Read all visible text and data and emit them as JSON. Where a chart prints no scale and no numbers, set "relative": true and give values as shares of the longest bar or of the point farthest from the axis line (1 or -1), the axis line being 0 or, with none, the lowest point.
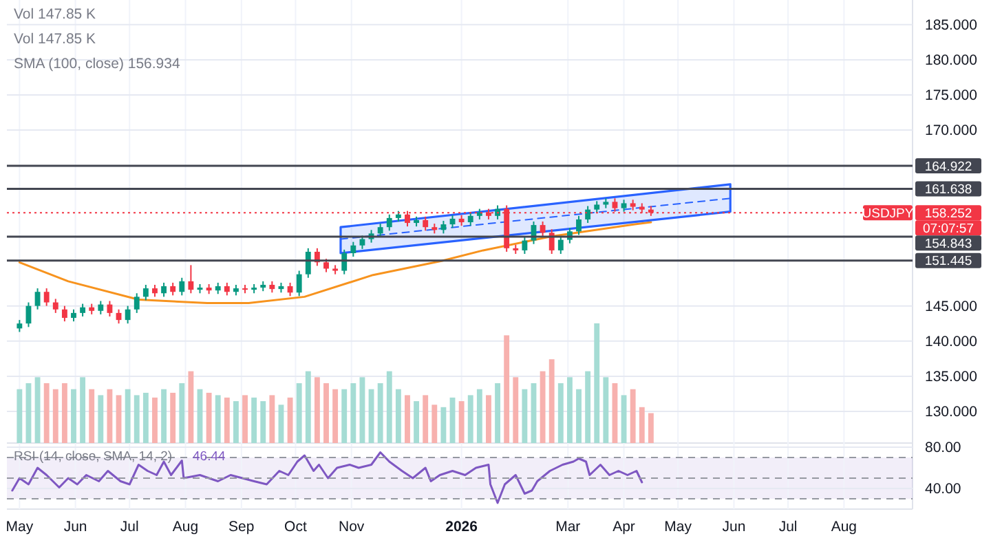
{
  "chart_data": [
    {
      "type": "candlestick",
      "xlim": [
        "2025-04-24",
        "2026-09-08"
      ],
      "ylim": [
        125.5,
        188.5
      ],
      "yticks": [
        {
          "value": 130,
          "label": "130.000"
        },
        {
          "value": 135,
          "label": "135.000"
        },
        {
          "value": 140,
          "label": "140.000"
        },
        {
          "value": 145,
          "label": "145.000"
        },
        {
          "value": 170,
          "label": "170.000"
        },
        {
          "value": 175,
          "label": "175.000"
        },
        {
          "value": 180,
          "label": "180.000"
        },
        {
          "value": 185,
          "label": "185.000"
        }
      ],
      "xticks": [
        {
          "value": "2025-05-01",
          "label": null
        },
        {
          "value": "2025-06-01",
          "label": null
        },
        {
          "value": "2025-07-01",
          "label": null
        },
        {
          "value": "2025-08-01",
          "label": null
        },
        {
          "value": "2025-09-01",
          "label": null
        },
        {
          "value": "2025-10-01",
          "label": null
        },
        {
          "value": "2025-11-01",
          "label": null
        },
        {
          "value": "2026-01-01",
          "label": null
        },
        {
          "value": "2026-03-01",
          "label": null
        },
        {
          "value": "2026-04-01",
          "label": null
        },
        {
          "value": "2026-05-01",
          "label": null
        },
        {
          "value": "2026-06-01",
          "label": null
        },
        {
          "value": "2026-07-01",
          "label": null
        },
        {
          "value": "2026-08-01",
          "label": null
        }
      ],
      "tick_labels": "y",
      "grid": true,
      "x": [
        "2025-05-01",
        "2025-05-06",
        "2025-05-11",
        "2025-05-16",
        "2025-05-21",
        "2025-05-26",
        "2025-05-31",
        "2025-06-05",
        "2025-06-10",
        "2025-06-15",
        "2025-06-20",
        "2025-06-25",
        "2025-06-30",
        "2025-07-05",
        "2025-07-10",
        "2025-07-15",
        "2025-07-20",
        "2025-07-25",
        "2025-07-30",
        "2025-08-04",
        "2025-08-09",
        "2025-08-14",
        "2025-08-19",
        "2025-08-24",
        "2025-08-29",
        "2025-09-03",
        "2025-09-08",
        "2025-09-13",
        "2025-09-18",
        "2025-09-23",
        "2025-09-28",
        "2025-10-03",
        "2025-10-08",
        "2025-10-13",
        "2025-10-18",
        "2025-10-23",
        "2025-10-28",
        "2025-11-02",
        "2025-11-07",
        "2025-11-12",
        "2025-11-17",
        "2025-11-22",
        "2025-11-27",
        "2025-12-02",
        "2025-12-07",
        "2025-12-12",
        "2025-12-17",
        "2025-12-22",
        "2025-12-27",
        "2026-01-01",
        "2026-01-06",
        "2026-01-11",
        "2026-01-16",
        "2026-01-21",
        "2026-01-26",
        "2026-01-31",
        "2026-02-05",
        "2026-02-10",
        "2026-02-15",
        "2026-02-20",
        "2026-02-25",
        "2026-03-02",
        "2026-03-07",
        "2026-03-12",
        "2026-03-17",
        "2026-03-22",
        "2026-03-27",
        "2026-04-01",
        "2026-04-06",
        "2026-04-11",
        "2026-04-16"
      ],
      "ohlc": [
        [
          141.8,
          143.0,
          141.3,
          142.5
        ],
        [
          142.5,
          145.5,
          142.0,
          145.0
        ],
        [
          145.0,
          147.5,
          144.5,
          147.0
        ],
        [
          147.0,
          147.5,
          145.0,
          145.5
        ],
        [
          145.5,
          146.0,
          144.0,
          144.5
        ],
        [
          144.5,
          145.0,
          142.8,
          143.3
        ],
        [
          143.3,
          144.5,
          142.8,
          144.0
        ],
        [
          144.0,
          145.3,
          143.5,
          144.8
        ],
        [
          144.8,
          145.3,
          143.8,
          144.3
        ],
        [
          144.3,
          145.7,
          143.8,
          145.2
        ],
        [
          145.2,
          145.7,
          143.5,
          144.0
        ],
        [
          144.0,
          144.5,
          142.5,
          143.0
        ],
        [
          143.0,
          145.0,
          142.5,
          144.5
        ],
        [
          144.5,
          146.8,
          144.0,
          146.3
        ],
        [
          146.3,
          148.0,
          145.8,
          147.5
        ],
        [
          147.5,
          148.0,
          146.3,
          146.8
        ],
        [
          146.8,
          148.3,
          146.3,
          147.8
        ],
        [
          147.8,
          148.3,
          146.5,
          147.0
        ],
        [
          147.0,
          149.0,
          146.5,
          148.5
        ],
        [
          148.5,
          150.8,
          146.8,
          147.3
        ],
        [
          147.3,
          148.1,
          146.8,
          147.6
        ],
        [
          147.6,
          148.1,
          146.7,
          147.2
        ],
        [
          147.2,
          148.3,
          146.7,
          147.8
        ],
        [
          147.8,
          148.3,
          146.5,
          147.0
        ],
        [
          147.0,
          148.0,
          146.5,
          147.5
        ],
        [
          147.5,
          148.0,
          146.8,
          147.3
        ],
        [
          147.3,
          148.1,
          146.8,
          147.6
        ],
        [
          147.6,
          148.5,
          147.1,
          148.0
        ],
        [
          148.0,
          148.5,
          146.9,
          147.4
        ],
        [
          147.4,
          148.3,
          146.9,
          147.8
        ],
        [
          147.8,
          148.3,
          146.4,
          146.9
        ],
        [
          146.9,
          150.0,
          146.4,
          149.5
        ],
        [
          149.5,
          153.2,
          149.0,
          152.7
        ],
        [
          152.7,
          153.2,
          150.7,
          151.2
        ],
        [
          151.2,
          151.7,
          149.8,
          150.3
        ],
        [
          150.3,
          150.8,
          149.5,
          150.0
        ],
        [
          150.0,
          153.0,
          149.5,
          152.5
        ],
        [
          152.5,
          154.1,
          152.0,
          153.6
        ],
        [
          153.6,
          155.0,
          153.1,
          154.5
        ],
        [
          154.5,
          155.8,
          154.0,
          155.3
        ],
        [
          155.3,
          156.7,
          154.8,
          156.2
        ],
        [
          156.2,
          158.0,
          155.7,
          157.5
        ],
        [
          157.5,
          158.5,
          157.0,
          158.0
        ],
        [
          158.0,
          158.5,
          156.3,
          156.8
        ],
        [
          156.8,
          157.7,
          156.3,
          157.2
        ],
        [
          157.2,
          157.7,
          155.7,
          156.2
        ],
        [
          156.2,
          156.7,
          155.3,
          155.8
        ],
        [
          155.8,
          157.1,
          155.3,
          156.6
        ],
        [
          156.6,
          157.9,
          156.1,
          157.4
        ],
        [
          157.4,
          157.9,
          156.4,
          156.9
        ],
        [
          156.9,
          158.3,
          156.4,
          157.8
        ],
        [
          157.8,
          158.8,
          157.3,
          158.3
        ],
        [
          158.3,
          158.8,
          157.3,
          157.8
        ],
        [
          157.8,
          159.3,
          157.3,
          158.8
        ],
        [
          158.8,
          159.3,
          152.7,
          153.2
        ],
        [
          153.2,
          153.7,
          152.4,
          152.9
        ],
        [
          152.9,
          154.8,
          152.4,
          154.3
        ],
        [
          154.3,
          157.0,
          153.8,
          156.5
        ],
        [
          156.5,
          157.0,
          154.9,
          155.4
        ],
        [
          155.4,
          155.9,
          152.4,
          152.9
        ],
        [
          152.9,
          154.9,
          152.4,
          154.4
        ],
        [
          154.4,
          156.1,
          153.9,
          155.6
        ],
        [
          155.6,
          157.8,
          155.1,
          157.3
        ],
        [
          157.3,
          159.2,
          156.8,
          158.7
        ],
        [
          158.7,
          159.9,
          158.2,
          159.4
        ],
        [
          159.4,
          160.3,
          158.9,
          159.8
        ],
        [
          159.8,
          160.3,
          158.4,
          158.9
        ],
        [
          158.9,
          160.1,
          158.4,
          159.6
        ],
        [
          159.6,
          160.1,
          158.6,
          159.1
        ],
        [
          159.1,
          159.6,
          158.2,
          158.7
        ],
        [
          158.7,
          159.2,
          157.8,
          158.252
        ]
      ],
      "series": [
        {
          "type": "line",
          "color": "#f7931e",
          "x": [
            "2025-05-01",
            "2025-05-28",
            "2025-07-06",
            "2025-08-13",
            "2025-09-05",
            "2025-10-06",
            "2025-11-13",
            "2025-12-21",
            "2026-01-13",
            "2026-02-20",
            "2026-04-07",
            "2026-04-16"
          ],
          "values": [
            151.2,
            148.5,
            145.9,
            145.4,
            145.4,
            146.3,
            149.4,
            151.4,
            152.9,
            154.9,
            156.6,
            156.9
          ]
        },
        {
          "type": "line",
          "color": "#2962ff",
          "line_style": "dashed",
          "x": [
            "2025-10-26",
            "2026-05-30"
          ],
          "values": [
            154.5,
            160.3
          ],
          "lower": [
            152.5,
            158.4
          ],
          "upper": [
            156.2,
            162.3
          ]
        }
      ],
      "ref_lines": [
        {
          "axis": "y",
          "value": 164.922,
          "label": "164.922",
          "color": "#434651"
        },
        {
          "axis": "y",
          "value": 161.638,
          "label": "161.638",
          "color": "#434651"
        },
        {
          "axis": "y",
          "value": 154.843,
          "label": "154.843",
          "color": "#434651"
        },
        {
          "axis": "y",
          "value": 151.445,
          "label": "151.445",
          "color": "#434651"
        },
        {
          "axis": "y",
          "value": 158.252,
          "label": "158.252",
          "color": "#f23645",
          "line_style": "dotted"
        }
      ],
      "annotations": [
        "Vol 147.85 K",
        "Vol 147.85 K",
        "SMA (100, close) 156.934",
        "USDJPY",
        "07:07:57"
      ]
    },
    {
      "type": "bar",
      "relative": true,
      "tick_labels": false,
      "xlim": [
        "2025-04-24",
        "2026-09-08"
      ],
      "x": [
        "2025-05-01",
        "2025-05-06",
        "2025-05-11",
        "2025-05-16",
        "2025-05-21",
        "2025-05-26",
        "2025-05-31",
        "2025-06-05",
        "2025-06-10",
        "2025-06-15",
        "2025-06-20",
        "2025-06-25",
        "2025-06-30",
        "2025-07-05",
        "2025-07-10",
        "2025-07-15",
        "2025-07-20",
        "2025-07-25",
        "2025-07-30",
        "2025-08-04",
        "2025-08-09",
        "2025-08-14",
        "2025-08-19",
        "2025-08-24",
        "2025-08-29",
        "2025-09-03",
        "2025-09-08",
        "2025-09-13",
        "2025-09-18",
        "2025-09-23",
        "2025-09-28",
        "2025-10-03",
        "2025-10-08",
        "2025-10-13",
        "2025-10-18",
        "2025-10-23",
        "2025-10-28",
        "2025-11-02",
        "2025-11-07",
        "2025-11-12",
        "2025-11-17",
        "2025-11-22",
        "2025-11-27",
        "2025-12-02",
        "2025-12-07",
        "2025-12-12",
        "2025-12-17",
        "2025-12-22",
        "2025-12-27",
        "2026-01-01",
        "2026-01-06",
        "2026-01-11",
        "2026-01-16",
        "2026-01-21",
        "2026-01-26",
        "2026-01-31",
        "2026-02-05",
        "2026-02-10",
        "2026-02-15",
        "2026-02-20",
        "2026-02-25",
        "2026-03-02",
        "2026-03-07",
        "2026-03-12",
        "2026-03-17",
        "2026-03-22",
        "2026-03-27",
        "2026-04-01",
        "2026-04-06",
        "2026-04-11",
        "2026-04-16"
      ],
      "values": [
        0.45,
        0.5,
        0.55,
        0.5,
        0.45,
        0.5,
        0.45,
        0.55,
        0.45,
        0.4,
        0.45,
        0.4,
        0.45,
        0.4,
        0.42,
        0.38,
        0.45,
        0.42,
        0.5,
        0.6,
        0.45,
        0.42,
        0.4,
        0.38,
        0.35,
        0.4,
        0.38,
        0.35,
        0.4,
        0.32,
        0.38,
        0.5,
        0.6,
        0.55,
        0.5,
        0.45,
        0.45,
        0.5,
        0.55,
        0.45,
        0.5,
        0.6,
        0.45,
        0.4,
        0.35,
        0.4,
        0.32,
        0.3,
        0.38,
        0.35,
        0.4,
        0.45,
        0.4,
        0.5,
        0.9,
        0.55,
        0.45,
        0.5,
        0.6,
        0.7,
        0.5,
        0.55,
        0.45,
        0.6,
        1.0,
        0.55,
        0.5,
        0.4,
        0.45,
        0.3,
        0.25
      ],
      "colors": [
        "#a5dcd4",
        "#a5dcd4",
        "#a5dcd4",
        "#f7b1ae",
        "#f7b1ae",
        "#f7b1ae",
        "#a5dcd4",
        "#a5dcd4",
        "#f7b1ae",
        "#a5dcd4",
        "#f7b1ae",
        "#f7b1ae",
        "#a5dcd4",
        "#a5dcd4",
        "#a5dcd4",
        "#f7b1ae",
        "#a5dcd4",
        "#f7b1ae",
        "#a5dcd4",
        "#f7b1ae",
        "#a5dcd4",
        "#f7b1ae",
        "#a5dcd4",
        "#f7b1ae",
        "#a5dcd4",
        "#f7b1ae",
        "#a5dcd4",
        "#a5dcd4",
        "#f7b1ae",
        "#a5dcd4",
        "#f7b1ae",
        "#a5dcd4",
        "#a5dcd4",
        "#f7b1ae",
        "#f7b1ae",
        "#f7b1ae",
        "#a5dcd4",
        "#a5dcd4",
        "#a5dcd4",
        "#a5dcd4",
        "#a5dcd4",
        "#a5dcd4",
        "#a5dcd4",
        "#f7b1ae",
        "#a5dcd4",
        "#f7b1ae",
        "#f7b1ae",
        "#a5dcd4",
        "#a5dcd4",
        "#f7b1ae",
        "#a5dcd4",
        "#a5dcd4",
        "#f7b1ae",
        "#a5dcd4",
        "#f7b1ae",
        "#f7b1ae",
        "#a5dcd4",
        "#a5dcd4",
        "#f7b1ae",
        "#f7b1ae",
        "#a5dcd4",
        "#a5dcd4",
        "#a5dcd4",
        "#a5dcd4",
        "#a5dcd4",
        "#a5dcd4",
        "#f7b1ae",
        "#a5dcd4",
        "#f7b1ae",
        "#f7b1ae",
        "#f7b1ae"
      ]
    },
    {
      "type": "line",
      "xlim": [
        "2025-04-24",
        "2026-09-08"
      ],
      "ylim": [
        20,
        84
      ],
      "grid": true,
      "yticks": [
        {
          "value": 80,
          "label": "80.00"
        },
        {
          "value": 40,
          "label": "40.00"
        }
      ],
      "xticks": [
        {
          "value": "2025-05-01",
          "label": "May"
        },
        {
          "value": "2025-06-01",
          "label": "Jun"
        },
        {
          "value": "2025-07-01",
          "label": "Jul"
        },
        {
          "value": "2025-08-01",
          "label": "Aug"
        },
        {
          "value": "2025-09-01",
          "label": "Sep"
        },
        {
          "value": "2025-10-01",
          "label": "Oct"
        },
        {
          "value": "2025-11-01",
          "label": "Nov"
        },
        {
          "value": "2026-01-01",
          "label": "2026"
        },
        {
          "value": "2026-03-01",
          "label": "Mar"
        },
        {
          "value": "2026-04-01",
          "label": "Apr"
        },
        {
          "value": "2026-05-01",
          "label": "May"
        },
        {
          "value": "2026-06-01",
          "label": "Jun"
        },
        {
          "value": "2026-07-01",
          "label": "Jul"
        },
        {
          "value": "2026-08-01",
          "label": "Aug"
        }
      ],
      "series": [
        {
          "color": "#7e57c2",
          "x": [
            "2025-04-27",
            "2025-05-01",
            "2025-05-06",
            "2025-05-11",
            "2025-05-16",
            "2025-05-23",
            "2025-05-28",
            "2025-06-02",
            "2025-06-07",
            "2025-06-14",
            "2025-06-19",
            "2025-06-26",
            "2025-07-01",
            "2025-07-06",
            "2025-07-11",
            "2025-07-16",
            "2025-07-20",
            "2025-07-24",
            "2025-07-30",
            "2025-07-31",
            "2025-08-09",
            "2025-08-19",
            "2025-08-26",
            "2025-09-08",
            "2025-09-15",
            "2025-09-22",
            "2025-09-27",
            "2025-10-02",
            "2025-10-06",
            "2025-10-11",
            "2025-10-14",
            "2025-10-19",
            "2025-10-24",
            "2025-10-31",
            "2025-11-05",
            "2025-11-12",
            "2025-11-17",
            "2025-11-22",
            "2025-11-29",
            "2025-12-05",
            "2025-12-12",
            "2025-12-15",
            "2025-12-20",
            "2025-12-27",
            "2026-01-03",
            "2026-01-09",
            "2026-01-16",
            "2026-01-17",
            "2026-01-21",
            "2026-01-25",
            "2026-01-31",
            "2026-02-05",
            "2026-02-09",
            "2026-02-12",
            "2026-02-19",
            "2026-02-26",
            "2026-03-04",
            "2026-03-07",
            "2026-03-11",
            "2026-03-13",
            "2026-03-19",
            "2026-03-24",
            "2026-03-29",
            "2026-04-03",
            "2026-04-08",
            "2026-04-11"
          ],
          "values": [
            38,
            50,
            44,
            60,
            53,
            41,
            50,
            44,
            53,
            47,
            57,
            47,
            44,
            63,
            57,
            53,
            66,
            53,
            67,
            50,
            53,
            47,
            53,
            47,
            44,
            57,
            53,
            66,
            72,
            57,
            63,
            50,
            60,
            63,
            60,
            63,
            75,
            66,
            57,
            50,
            60,
            47,
            53,
            57,
            53,
            60,
            63,
            44,
            26,
            44,
            53,
            35,
            38,
            47,
            57,
            63,
            66,
            69,
            66,
            53,
            63,
            53,
            57,
            53,
            57,
            46
          ]
        }
      ],
      "bands": [
        {
          "axis": "y",
          "from": 30,
          "to": 70,
          "color": "#7e57c2"
        }
      ],
      "ref_lines": [
        {
          "axis": "y",
          "value": 70,
          "color": "#9598a1",
          "line_style": "dashed"
        },
        {
          "axis": "y",
          "value": 50,
          "color": "#9598a1",
          "line_style": "dashed"
        },
        {
          "axis": "y",
          "value": 30,
          "color": "#9598a1",
          "line_style": "dashed"
        }
      ],
      "annotations": [
        "RSI (14, close, SMA, 14, 2)",
        "46.44"
      ]
    }
  ]
}
